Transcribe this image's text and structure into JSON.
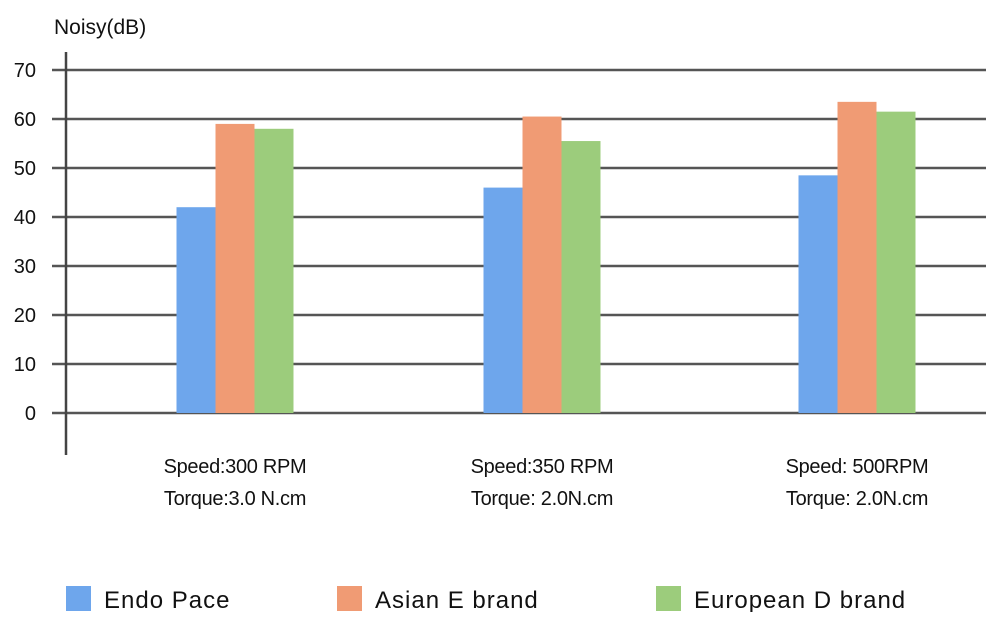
{
  "chart_data": {
    "type": "bar",
    "ylabel": "Noisy(dB)",
    "ylim": [
      0,
      70
    ],
    "yticks": [
      0,
      10,
      20,
      30,
      40,
      50,
      60,
      70
    ],
    "grid": true,
    "legend_position": "bottom",
    "categories": [
      [
        "Speed:300 RPM",
        "Torque:3.0 N.cm"
      ],
      [
        "Speed:350 RPM",
        "Torque: 2.0N.cm"
      ],
      [
        "Speed: 500RPM",
        "Torque: 2.0N.cm"
      ]
    ],
    "series": [
      {
        "name": "Endo Pace",
        "color": "#6ea6ec",
        "values": [
          42,
          46,
          48.5
        ]
      },
      {
        "name": "Asian E brand",
        "color": "#f09b74",
        "values": [
          59,
          60.5,
          63.5
        ]
      },
      {
        "name": "European D brand",
        "color": "#9ccc7c",
        "values": [
          58,
          55.5,
          61.5
        ]
      }
    ],
    "colors": {
      "axis": "#444444",
      "grid": "#555555",
      "text": "#111111"
    }
  }
}
